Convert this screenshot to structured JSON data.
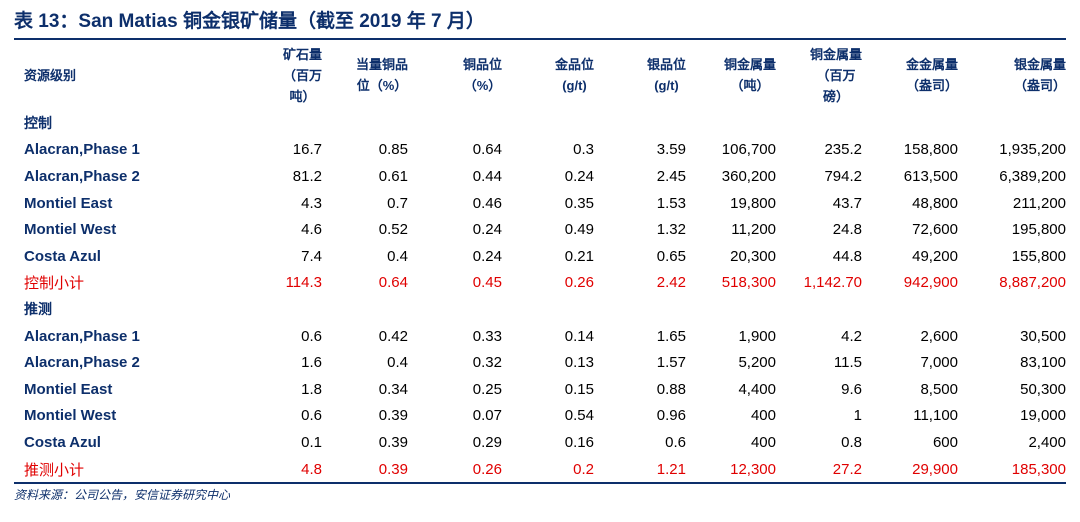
{
  "title": "表 13：San Matias 铜金银矿储量（截至 2019 年 7 月）",
  "headers": [
    [
      "资源级别"
    ],
    [
      "矿石量",
      "（百万",
      "吨）"
    ],
    [
      "当量铜品",
      "位（%）"
    ],
    [
      "铜品位",
      "（%）"
    ],
    [
      "金品位",
      "(g/t)"
    ],
    [
      "银品位",
      "(g/t)"
    ],
    [
      "铜金属量",
      "（吨）"
    ],
    [
      "铜金属量",
      "（百万",
      "磅）"
    ],
    [
      "金金属量",
      "（盎司）"
    ],
    [
      "银金属量",
      "（盎司）"
    ]
  ],
  "sections": [
    {
      "label": "控制",
      "rows": [
        [
          "Alacran,Phase 1",
          "16.7",
          "0.85",
          "0.64",
          "0.3",
          "3.59",
          "106,700",
          "235.2",
          "158,800",
          "1,935,200"
        ],
        [
          "Alacran,Phase 2",
          "81.2",
          "0.61",
          "0.44",
          "0.24",
          "2.45",
          "360,200",
          "794.2",
          "613,500",
          "6,389,200"
        ],
        [
          "Montiel East",
          "4.3",
          "0.7",
          "0.46",
          "0.35",
          "1.53",
          "19,800",
          "43.7",
          "48,800",
          "211,200"
        ],
        [
          "Montiel West",
          "4.6",
          "0.52",
          "0.24",
          "0.49",
          "1.32",
          "11,200",
          "24.8",
          "72,600",
          "195,800"
        ],
        [
          "Costa Azul",
          "7.4",
          "0.4",
          "0.24",
          "0.21",
          "0.65",
          "20,300",
          "44.8",
          "49,200",
          "155,800"
        ]
      ],
      "subtotal": [
        "控制小计",
        "114.3",
        "0.64",
        "0.45",
        "0.26",
        "2.42",
        "518,300",
        "1,142.70",
        "942,900",
        "8,887,200"
      ]
    },
    {
      "label": "推测",
      "rows": [
        [
          "Alacran,Phase 1",
          "0.6",
          "0.42",
          "0.33",
          "0.14",
          "1.65",
          "1,900",
          "4.2",
          "2,600",
          "30,500"
        ],
        [
          "Alacran,Phase 2",
          "1.6",
          "0.4",
          "0.32",
          "0.13",
          "1.57",
          "5,200",
          "11.5",
          "7,000",
          "83,100"
        ],
        [
          "Montiel East",
          "1.8",
          "0.34",
          "0.25",
          "0.15",
          "0.88",
          "4,400",
          "9.6",
          "8,500",
          "50,300"
        ],
        [
          "Montiel West",
          "0.6",
          "0.39",
          "0.07",
          "0.54",
          "0.96",
          "400",
          "1",
          "11,100",
          "19,000"
        ],
        [
          "Costa Azul",
          "0.1",
          "0.39",
          "0.29",
          "0.16",
          "0.6",
          "400",
          "0.8",
          "600",
          "2,400"
        ]
      ],
      "subtotal": [
        "推测小计",
        "4.8",
        "0.39",
        "0.26",
        "0.2",
        "1.21",
        "12,300",
        "27.2",
        "29,900",
        "185,300"
      ]
    }
  ],
  "source": "资料来源：公司公告，安信证券研究中心"
}
